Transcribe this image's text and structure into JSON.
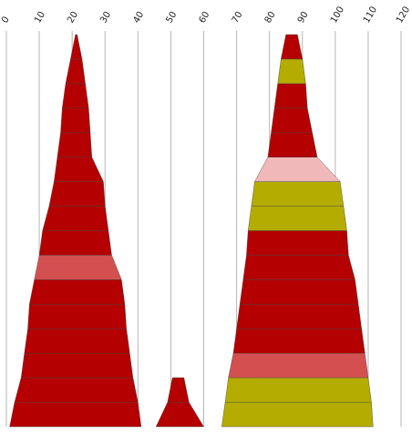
{
  "chart_data": {
    "type": "area",
    "x_axis": {
      "min": 0,
      "max": 120,
      "ticks": [
        0,
        10,
        20,
        30,
        40,
        50,
        60,
        70,
        80,
        90,
        100,
        110,
        120
      ],
      "position": "top",
      "tick_label_rotation": -60
    },
    "grid": true,
    "colors": {
      "dark_red": "#b40000",
      "pink_red": "#d45050",
      "light_pink": "#f0b8b8",
      "olive": "#b4ac00"
    },
    "stacks": [
      {
        "segments": [
          {
            "left": 1.0,
            "right": 41.0,
            "color": "dark_red"
          },
          {
            "left": 2.5,
            "right": 40.0,
            "color": "dark_red"
          },
          {
            "left": 4.5,
            "right": 38.5,
            "color": "dark_red"
          },
          {
            "left": 5.5,
            "right": 37.5,
            "color": "dark_red"
          },
          {
            "left": 6.5,
            "right": 36.5,
            "color": "dark_red"
          },
          {
            "left": 7.0,
            "right": 36.0,
            "color": "dark_red"
          },
          {
            "left": 8.5,
            "right": 35.0,
            "color": "pink_red"
          },
          {
            "left": 10.0,
            "right": 32.0,
            "color": "dark_red"
          },
          {
            "left": 11.0,
            "right": 31.0,
            "color": "dark_red"
          },
          {
            "left": 13.0,
            "right": 30.0,
            "color": "dark_red"
          },
          {
            "left": 14.5,
            "right": 29.5,
            "color": "dark_red"
          },
          {
            "left": 15.5,
            "right": 26.0,
            "color": "dark_red"
          },
          {
            "left": 16.5,
            "right": 25.5,
            "color": "dark_red"
          },
          {
            "left": 17.0,
            "right": 25.0,
            "color": "dark_red"
          },
          {
            "left": 18.0,
            "right": 24.0,
            "color": "dark_red"
          },
          {
            "left": 19.5,
            "right": 23.0,
            "color": "dark_red"
          }
        ]
      },
      {
        "segments": [
          {
            "left": 45.5,
            "right": 60.0,
            "color": "dark_red"
          },
          {
            "left": 49.0,
            "right": 55.5,
            "color": "dark_red"
          }
        ]
      },
      {
        "segments": [
          {
            "left": 65.5,
            "right": 111.5,
            "color": "olive"
          },
          {
            "left": 66.5,
            "right": 111.0,
            "color": "olive"
          },
          {
            "left": 67.5,
            "right": 110.0,
            "color": "pink_red"
          },
          {
            "left": 69.0,
            "right": 109.0,
            "color": "dark_red"
          },
          {
            "left": 70.0,
            "right": 108.0,
            "color": "dark_red"
          },
          {
            "left": 71.0,
            "right": 107.0,
            "color": "dark_red"
          },
          {
            "left": 72.0,
            "right": 106.0,
            "color": "dark_red"
          },
          {
            "left": 73.0,
            "right": 104.0,
            "color": "dark_red"
          },
          {
            "left": 73.5,
            "right": 103.5,
            "color": "olive"
          },
          {
            "left": 74.5,
            "right": 102.5,
            "color": "olive"
          },
          {
            "left": 75.5,
            "right": 101.5,
            "color": "light_pink"
          },
          {
            "left": 79.5,
            "right": 94.5,
            "color": "dark_red"
          },
          {
            "left": 80.5,
            "right": 93.0,
            "color": "dark_red"
          },
          {
            "left": 81.5,
            "right": 91.5,
            "color": "dark_red"
          },
          {
            "left": 82.5,
            "right": 91.0,
            "color": "olive"
          },
          {
            "left": 83.5,
            "right": 90.0,
            "color": "dark_red"
          }
        ]
      }
    ]
  }
}
